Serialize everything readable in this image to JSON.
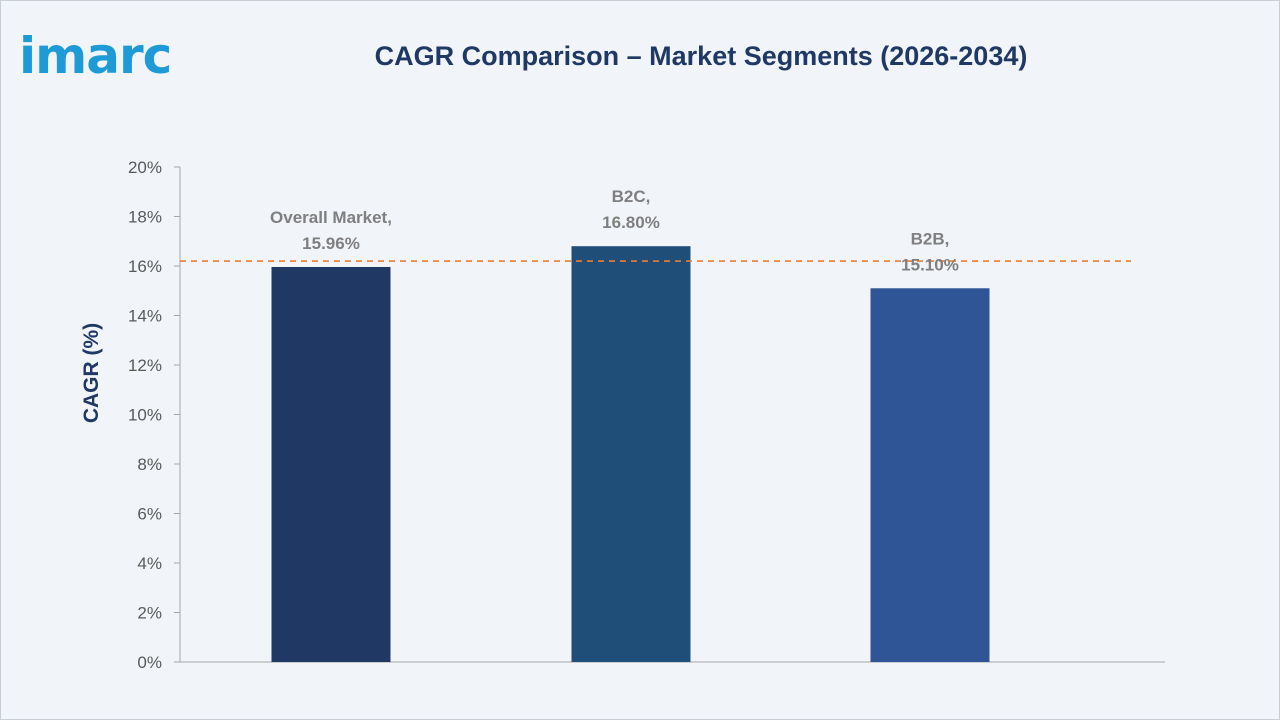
{
  "logo": {
    "text": "imarc",
    "color": "#1e9bd7"
  },
  "chart_data": {
    "type": "bar",
    "title": "CAGR Comparison – Market Segments (2026-2034)",
    "ylabel": "CAGR (%)",
    "xlabel": "",
    "categories": [
      "Overall Market",
      "B2C",
      "B2B"
    ],
    "values": [
      15.96,
      16.8,
      15.1
    ],
    "data_labels": [
      [
        "Overall Market,",
        "15.96%"
      ],
      [
        "B2C,",
        "16.80%"
      ],
      [
        "B2B,",
        "15.10%"
      ]
    ],
    "colors": [
      "#203864",
      "#1f4e79",
      "#2f5597"
    ],
    "ylim": [
      0,
      20
    ],
    "yticks": [
      0,
      2,
      4,
      6,
      8,
      10,
      12,
      14,
      16,
      18,
      20
    ],
    "ytick_labels": [
      "0%",
      "2%",
      "4%",
      "6%",
      "8%",
      "10%",
      "12%",
      "14%",
      "16%",
      "18%",
      "20%"
    ],
    "reference_line": {
      "value": 16.2,
      "style": "dashed",
      "color": "#ed7d31"
    },
    "grid": false,
    "legend": "none"
  }
}
